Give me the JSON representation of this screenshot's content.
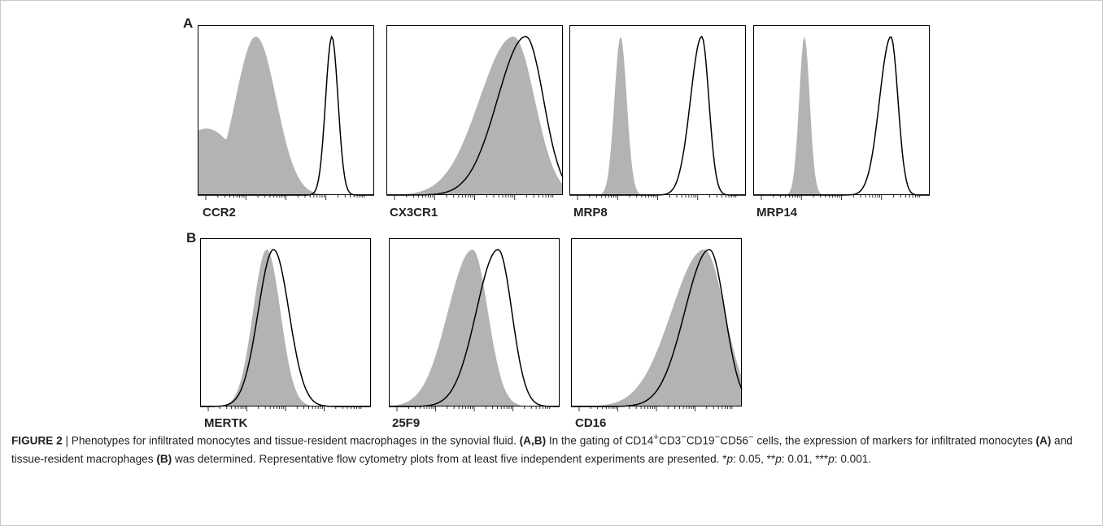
{
  "figure": {
    "panels": [
      {
        "letter": "A",
        "plots": [
          {
            "marker": "CCR2",
            "filled": {
              "mu": 0.33,
              "sd": 0.115,
              "shoulder": true
            },
            "outline": {
              "mu": 0.76,
              "sd": 0.035
            }
          },
          {
            "marker": "CX3CR1",
            "filled": {
              "mu": 0.72,
              "sd": 0.12,
              "skewLeft": true
            },
            "outline": {
              "mu": 0.79,
              "sd": 0.1,
              "skewLeft": true
            }
          },
          {
            "marker": "MRP8",
            "filled": {
              "mu": 0.29,
              "sd": 0.035
            },
            "outline": {
              "mu": 0.75,
              "sd": 0.04,
              "skewLeft": true
            }
          },
          {
            "marker": "MRP14",
            "filled": {
              "mu": 0.29,
              "sd": 0.03
            },
            "outline": {
              "mu": 0.78,
              "sd": 0.04,
              "skewLeft": true
            }
          }
        ]
      },
      {
        "letter": "B",
        "plots": [
          {
            "marker": "MERTK",
            "filled": {
              "mu": 0.39,
              "sd": 0.08
            },
            "outline": {
              "mu": 0.43,
              "sd": 0.09
            }
          },
          {
            "marker": "25F9",
            "filled": {
              "mu": 0.49,
              "sd": 0.09,
              "skewLeft": true
            },
            "outline": {
              "mu": 0.64,
              "sd": 0.08,
              "skewLeft": true
            }
          },
          {
            "marker": "CD16",
            "filled": {
              "mu": 0.78,
              "sd": 0.12,
              "skewLeft": true
            },
            "outline": {
              "mu": 0.81,
              "sd": 0.09,
              "skewLeft": true
            }
          }
        ]
      }
    ],
    "colors": {
      "filled": "#b3b3b3",
      "outline": "#000000",
      "axis": "#000000"
    }
  },
  "caption": {
    "label": "FIGURE 2",
    "separator": " | ",
    "title": "Phenotypes for infiltrated monocytes and tissue-resident macrophages in the synovial fluid. ",
    "ref_ab": "(A,B)",
    "text1": " In the gating of CD14",
    "sup_plus": "+",
    "cd3": "CD3",
    "sup_m1": "−",
    "cd19": "CD19",
    "sup_m2": "−",
    "cd56": "CD56",
    "sup_m3": "−",
    "text2": " cells, the expression of markers for infiltrated monocytes ",
    "ref_a": "(A)",
    "text3": " and tissue-resident macrophages ",
    "ref_b": "(B)",
    "text4": " was determined. Representative flow cytometry plots from at least five independent experiments are presented. *",
    "p1": "p",
    "v1": ": 0.05, **",
    "p2": "p",
    "v2": ": 0.01, ***",
    "p3": "p",
    "v3": ": 0.001."
  }
}
